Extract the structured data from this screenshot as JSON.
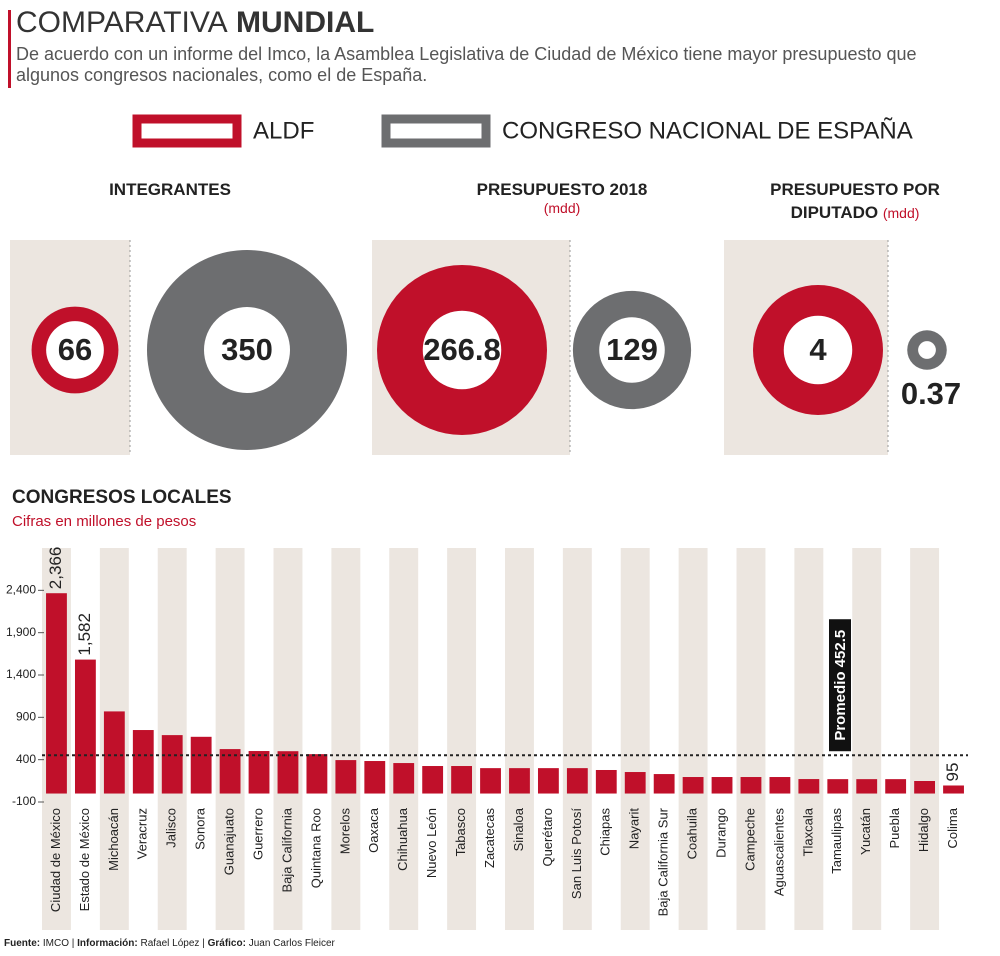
{
  "header": {
    "title_light": "COMPARATIVA",
    "title_bold": "MUNDIAL",
    "subtitle": "De acuerdo con un informe del Imco, la Asamblea Legislativa de Ciudad de México tiene mayor presupuesto que algunos congresos nacionales, como el de España."
  },
  "legend": [
    {
      "name": "ALDF",
      "color": "#c0102a"
    },
    {
      "name": "CONGRESO NACIONAL DE ESPAÑA",
      "color": "#6d6e70"
    }
  ],
  "chart_data": [
    {
      "type": "bubble",
      "title": "INTEGRANTES",
      "values": [
        66,
        350
      ]
    },
    {
      "type": "bubble",
      "title": "PRESUPUESTO 2018",
      "subtitle": "(mdd)",
      "values": [
        266.8,
        129
      ]
    },
    {
      "type": "bubble",
      "title": "PRESUPUESTO POR DIPUTADO",
      "subtitle": "(mdd)",
      "values": [
        4,
        0.37
      ]
    },
    {
      "type": "bar",
      "title": "CONGRESOS LOCALES",
      "subtitle": "Cifras en millones de pesos",
      "categories": [
        "Ciudad de México",
        "Estado de México",
        "Michoacán",
        "Veracruz",
        "Jalisco",
        "Sonora",
        "Guanajuato",
        "Guerrero",
        "Baja California",
        "Quintana Roo",
        "Morelos",
        "Oaxaca",
        "Chihuahua",
        "Nuevo León",
        "Tabasco",
        "Zacatecas",
        "Sinaloa",
        "Querétaro",
        "San Luis Potosí",
        "Chiapas",
        "Nayarit",
        "Baja California Sur",
        "Coahuila",
        "Durango",
        "Campeche",
        "Aguascalientes",
        "Tlaxcala",
        "Tamaulipas",
        "Yucatán",
        "Puebla",
        "Hidalgo",
        "Colima"
      ],
      "values": [
        2366,
        1582,
        970,
        750,
        690,
        670,
        525,
        502,
        500,
        465,
        395,
        384,
        360,
        325,
        325,
        300,
        300,
        300,
        300,
        278,
        254,
        230,
        195,
        195,
        195,
        195,
        171,
        170,
        170,
        170,
        148,
        95
      ],
      "value_labels": [
        "2,366",
        "1,582",
        null,
        null,
        null,
        null,
        null,
        null,
        null,
        null,
        null,
        null,
        null,
        null,
        null,
        null,
        null,
        null,
        null,
        null,
        null,
        null,
        null,
        null,
        null,
        null,
        null,
        null,
        null,
        null,
        null,
        "95"
      ],
      "color": "#c0102a",
      "ylim": [
        -100,
        2900
      ],
      "yticks": [
        {
          "value": 2400,
          "label": "2,400"
        },
        {
          "value": 1900,
          "label": "1,900"
        },
        {
          "value": 1400,
          "label": "1,400"
        },
        900,
        400,
        -100
      ],
      "average": {
        "value": 452.5,
        "label": "Promedio 452.5"
      }
    }
  ],
  "footer": [
    {
      "label": "Fuente:",
      "text": "IMCO"
    },
    {
      "label": "Información:",
      "text": "Rafael López"
    },
    {
      "label": "Gráfico:",
      "text": "Juan Carlos Fleicer"
    }
  ]
}
